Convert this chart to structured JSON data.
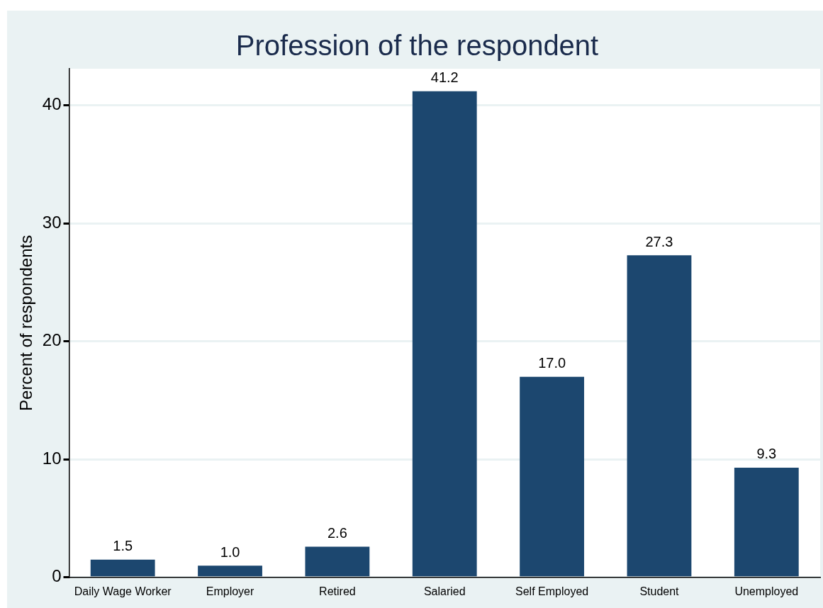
{
  "chart_data": {
    "type": "bar",
    "title": "Profession of the respondent",
    "ylabel": "Percent of respondents",
    "categories": [
      "Daily Wage Worker",
      "Employer",
      "Retired",
      "Salaried",
      "Self Employed",
      "Student",
      "Unemployed"
    ],
    "values": [
      1.5,
      1.0,
      2.6,
      41.2,
      17.0,
      27.3,
      9.3
    ],
    "value_labels": [
      "1.5",
      "1.0",
      "2.6",
      "41.2",
      "17.0",
      "27.3",
      "9.3"
    ],
    "color": "#1c476f",
    "ylim": [
      0,
      43.1
    ],
    "yticks": [
      0,
      10,
      20,
      30,
      40
    ],
    "grid": "y",
    "legend": false
  }
}
